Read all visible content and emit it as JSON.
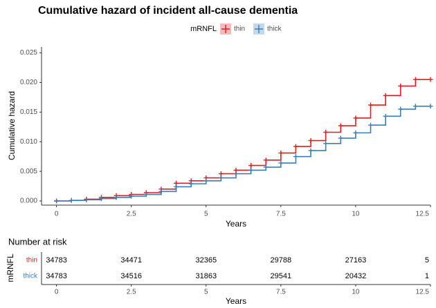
{
  "chart_data": [
    {
      "type": "step",
      "title": "Cumulative hazard of incident all-cause dementia",
      "legend_title": "mRNFL",
      "legend": "top",
      "x_label": "Years",
      "y_label": "Cumulative hazard",
      "xlim": [
        -0.5,
        12.5
      ],
      "ylim": [
        -0.0007,
        0.026
      ],
      "xticks": [
        0,
        2.5,
        5,
        7.5,
        10,
        12.5
      ],
      "yticks": [
        {
          "value": 0,
          "label": "0.000"
        },
        {
          "value": 0.005,
          "label": "0.005"
        },
        {
          "value": 0.01,
          "label": "0.010"
        },
        {
          "value": 0.015,
          "label": "0.015"
        },
        {
          "value": 0.02,
          "label": "0.020"
        },
        {
          "value": 0.025,
          "label": "0.025"
        }
      ],
      "series": [
        {
          "name": "thin",
          "color": "#e41a1c",
          "x": [
            0,
            0.5,
            1,
            1.5,
            2,
            2.5,
            3,
            3.5,
            4,
            4.5,
            5,
            5.5,
            6,
            6.5,
            7,
            7.5,
            8,
            8.5,
            9,
            9.5,
            10,
            10.5,
            11,
            11.5,
            12,
            12.5
          ],
          "values": [
            0,
            0.0001,
            0.0003,
            0.0006,
            0.0009,
            0.0011,
            0.0014,
            0.002,
            0.003,
            0.0034,
            0.0039,
            0.0046,
            0.0052,
            0.006,
            0.0069,
            0.0081,
            0.0092,
            0.0102,
            0.0116,
            0.0127,
            0.014,
            0.0162,
            0.0178,
            0.0194,
            0.0205,
            0.0205
          ]
        },
        {
          "name": "thick",
          "color": "#377eb8",
          "x": [
            0,
            0.5,
            1,
            1.5,
            2,
            2.5,
            3,
            3.5,
            4,
            4.5,
            5,
            5.5,
            6,
            6.5,
            7,
            7.5,
            8,
            8.5,
            9,
            9.5,
            10,
            10.5,
            11,
            11.5,
            12,
            12.5
          ],
          "values": [
            0,
            0.0001,
            0.0002,
            0.0004,
            0.0006,
            0.0008,
            0.0011,
            0.0016,
            0.0024,
            0.0029,
            0.0034,
            0.0039,
            0.0046,
            0.0052,
            0.0057,
            0.0064,
            0.0075,
            0.0085,
            0.0097,
            0.0106,
            0.0115,
            0.0128,
            0.0143,
            0.0155,
            0.016,
            0.016
          ]
        }
      ]
    },
    {
      "type": "risk_table",
      "title": "Number at risk",
      "y_label": "mRNFL",
      "x_label": "Years",
      "xlim": [
        -0.5,
        12.5
      ],
      "xticks": [
        0,
        2.5,
        5,
        7.5,
        10,
        12.5
      ],
      "rows": [
        {
          "name": "thin",
          "color": "#e41a1c",
          "values": [
            34783,
            34471,
            32365,
            29788,
            27163,
            5
          ]
        },
        {
          "name": "thick",
          "color": "#377eb8",
          "values": [
            34783,
            34516,
            31863,
            29541,
            20432,
            1
          ]
        }
      ]
    }
  ]
}
